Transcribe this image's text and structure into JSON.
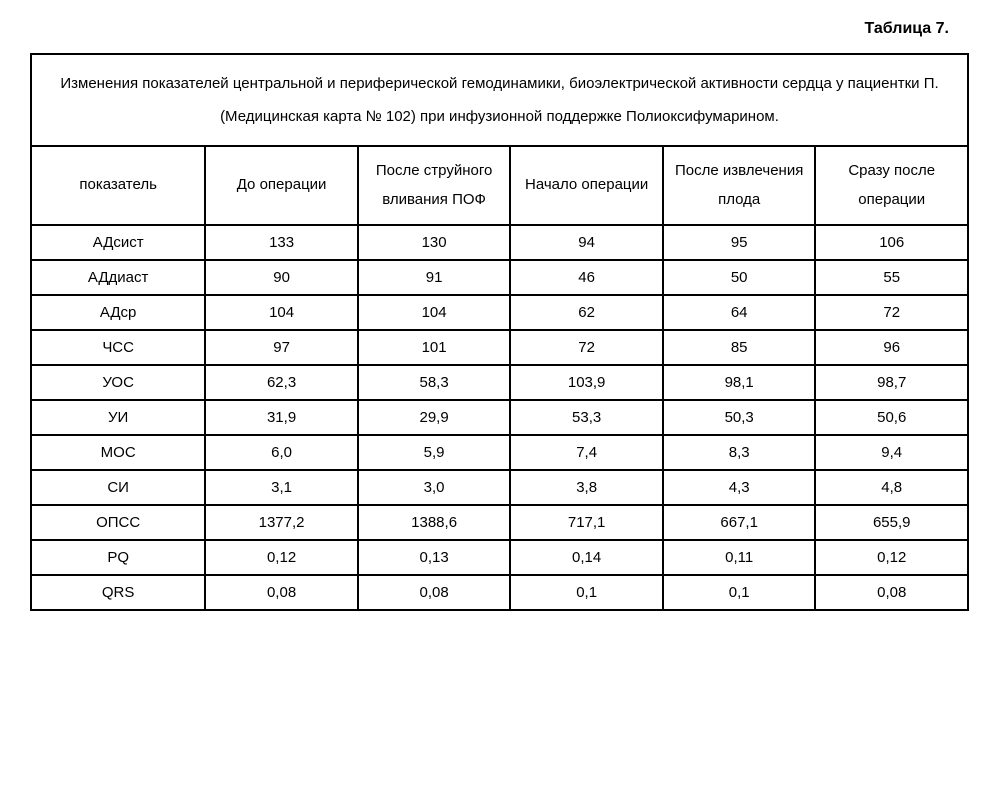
{
  "table_label": "Таблица 7.",
  "caption": "Изменения показателей центральной и периферической гемодинамики, биоэлектрической активности сердца у пациентки П. (Медицинская карта № 102) при инфузионной поддержке Полиоксифумарином.",
  "columns": [
    "показатель",
    "До операции",
    "После струйного вливания ПОФ",
    "Начало операции",
    "После извлечения плода",
    "Сразу после операции"
  ],
  "rows": [
    {
      "indicator": "АДсист",
      "v1": "133",
      "v2": "130",
      "v3": "94",
      "v4": "95",
      "v5": "106"
    },
    {
      "indicator": "АДдиаст",
      "v1": "90",
      "v2": "91",
      "v3": "46",
      "v4": "50",
      "v5": "55"
    },
    {
      "indicator": "АДср",
      "v1": "104",
      "v2": "104",
      "v3": "62",
      "v4": "64",
      "v5": "72"
    },
    {
      "indicator": "ЧСС",
      "v1": "97",
      "v2": "101",
      "v3": "72",
      "v4": "85",
      "v5": "96"
    },
    {
      "indicator": "УОС",
      "v1": "62,3",
      "v2": "58,3",
      "v3": "103,9",
      "v4": "98,1",
      "v5": "98,7"
    },
    {
      "indicator": "УИ",
      "v1": "31,9",
      "v2": "29,9",
      "v3": "53,3",
      "v4": "50,3",
      "v5": "50,6"
    },
    {
      "indicator": "МОС",
      "v1": "6,0",
      "v2": "5,9",
      "v3": "7,4",
      "v4": "8,3",
      "v5": "9,4"
    },
    {
      "indicator": "СИ",
      "v1": "3,1",
      "v2": "3,0",
      "v3": "3,8",
      "v4": "4,3",
      "v5": "4,8"
    },
    {
      "indicator": "ОПСС",
      "v1": "1377,2",
      "v2": "1388,6",
      "v3": "717,1",
      "v4": "667,1",
      "v5": "655,9"
    },
    {
      "indicator": "PQ",
      "v1": "0,12",
      "v2": "0,13",
      "v3": "0,14",
      "v4": "0,11",
      "v5": "0,12"
    },
    {
      "indicator": "QRS",
      "v1": "0,08",
      "v2": "0,08",
      "v3": "0,1",
      "v4": "0,1",
      "v5": "0,08"
    }
  ],
  "styling": {
    "font_family": "Arial, sans-serif",
    "font_size_body": 15,
    "font_size_label": 16,
    "border_color": "#000000",
    "border_width": 2,
    "background_color": "#ffffff",
    "text_color": "#000000",
    "cell_padding": "8px 10px",
    "caption_line_height": 2.2,
    "header_line_height": 1.9
  }
}
